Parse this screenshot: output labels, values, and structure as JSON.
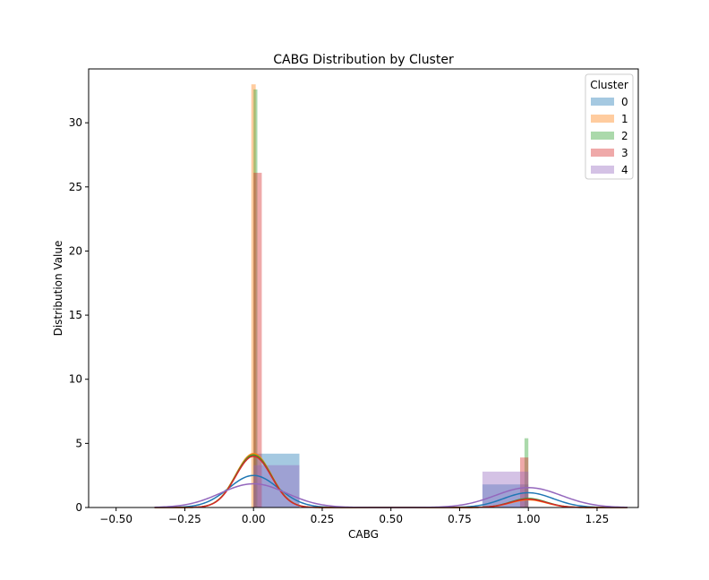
{
  "chart_data": {
    "type": "histogram-kde",
    "title": "CABG Distribution by Cluster",
    "xlabel": "CABG",
    "ylabel": "Distribution Value",
    "xlim": [
      -0.6,
      1.4
    ],
    "ylim": [
      0,
      34.2
    ],
    "xticks": [
      -0.5,
      -0.25,
      0.0,
      0.25,
      0.5,
      0.75,
      1.0,
      1.25
    ],
    "xtick_labels": [
      "−0.50",
      "−0.25",
      "0.00",
      "0.25",
      "0.50",
      "0.75",
      "1.00",
      "1.25"
    ],
    "yticks": [
      0,
      5,
      10,
      15,
      20,
      25,
      30
    ],
    "ytick_labels": [
      "0",
      "5",
      "10",
      "15",
      "20",
      "25",
      "30"
    ],
    "grid": false,
    "legend": {
      "title": "Cluster",
      "placement": "top-right"
    },
    "series": [
      {
        "name": "0",
        "color": "#1f77b4",
        "bars": [
          {
            "x0": 0.0,
            "x1": 0.167,
            "h": 4.2
          },
          {
            "x0": 0.833,
            "x1": 1.0,
            "h": 1.8
          }
        ],
        "kde": {
          "peaks": [
            {
              "mu": 0.0,
              "sigma": 0.09,
              "h": 2.5
            },
            {
              "mu": 1.0,
              "sigma": 0.09,
              "h": 1.15
            }
          ]
        }
      },
      {
        "name": "1",
        "color": "#ff7f0e",
        "bars": [
          {
            "x0": -0.008,
            "x1": 0.008,
            "h": 33.0
          }
        ],
        "kde": {
          "peaks": [
            {
              "mu": 0.0,
              "sigma": 0.065,
              "h": 4.2
            },
            {
              "mu": 1.0,
              "sigma": 0.065,
              "h": 0.6
            }
          ]
        }
      },
      {
        "name": "2",
        "color": "#2ca02c",
        "bars": [
          {
            "x0": 0.0,
            "x1": 0.014,
            "h": 32.6
          },
          {
            "x0": 0.986,
            "x1": 1.0,
            "h": 5.4
          }
        ],
        "kde": {
          "peaks": [
            {
              "mu": 0.0,
              "sigma": 0.065,
              "h": 4.1
            },
            {
              "mu": 1.0,
              "sigma": 0.065,
              "h": 0.7
            }
          ]
        }
      },
      {
        "name": "3",
        "color": "#d62728",
        "bars": [
          {
            "x0": 0.0,
            "x1": 0.03,
            "h": 26.1
          },
          {
            "x0": 0.97,
            "x1": 1.0,
            "h": 3.9
          }
        ],
        "kde": {
          "peaks": [
            {
              "mu": 0.0,
              "sigma": 0.065,
              "h": 4.0
            },
            {
              "mu": 1.0,
              "sigma": 0.065,
              "h": 0.65
            }
          ]
        }
      },
      {
        "name": "4",
        "color": "#9467bd",
        "bars": [
          {
            "x0": 0.0,
            "x1": 0.167,
            "h": 3.3
          },
          {
            "x0": 0.833,
            "x1": 1.0,
            "h": 2.8
          }
        ],
        "kde": {
          "peaks": [
            {
              "mu": 0.0,
              "sigma": 0.12,
              "h": 1.85
            },
            {
              "mu": 1.0,
              "sigma": 0.12,
              "h": 1.55
            }
          ]
        }
      }
    ]
  }
}
